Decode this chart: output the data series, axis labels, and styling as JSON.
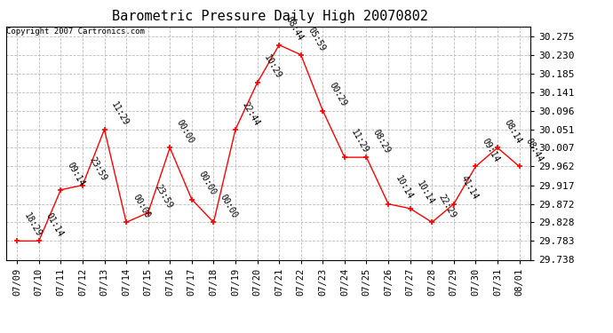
{
  "title": "Barometric Pressure Daily High 20070802",
  "copyright": "Copyright 2007 Cartronics.com",
  "x_labels": [
    "07/09",
    "07/10",
    "07/11",
    "07/12",
    "07/13",
    "07/14",
    "07/15",
    "07/16",
    "07/17",
    "07/18",
    "07/19",
    "07/20",
    "07/21",
    "07/22",
    "07/23",
    "07/24",
    "07/25",
    "07/26",
    "07/27",
    "07/28",
    "07/29",
    "07/30",
    "07/31",
    "08/01"
  ],
  "dates": [
    0,
    1,
    2,
    3,
    4,
    5,
    6,
    7,
    8,
    9,
    10,
    11,
    12,
    13,
    14,
    15,
    16,
    17,
    18,
    19,
    20,
    21,
    22,
    23
  ],
  "values": [
    29.783,
    29.783,
    29.906,
    29.917,
    30.051,
    29.828,
    29.851,
    30.007,
    29.883,
    29.828,
    30.051,
    30.163,
    30.254,
    30.23,
    30.096,
    29.984,
    29.984,
    29.872,
    29.861,
    29.828,
    29.872,
    29.962,
    30.007,
    29.962
  ],
  "annotations": [
    "18:29",
    "01:14",
    "09:14",
    "23:59",
    "11:29",
    "00:00",
    "23:59",
    "00:00",
    "00:00",
    "00:00",
    "22:44",
    "10:29",
    "08:44",
    "05:59",
    "00:29",
    "11:29",
    "08:29",
    "10:14",
    "10:14",
    "22:29",
    "41:14",
    "09:14",
    "08:14",
    "08:44"
  ],
  "ylim_min": 29.738,
  "ylim_max": 30.2978,
  "yticks": [
    29.738,
    29.783,
    29.828,
    29.872,
    29.917,
    29.962,
    30.007,
    30.051,
    30.096,
    30.141,
    30.185,
    30.23,
    30.275
  ],
  "line_color": "red",
  "marker": "+",
  "marker_size": 5,
  "bg_color": "white",
  "grid_color": "#bbbbbb",
  "title_fontsize": 11,
  "annotation_fontsize": 7,
  "tick_fontsize": 8,
  "xlabel_fontsize": 7.5
}
